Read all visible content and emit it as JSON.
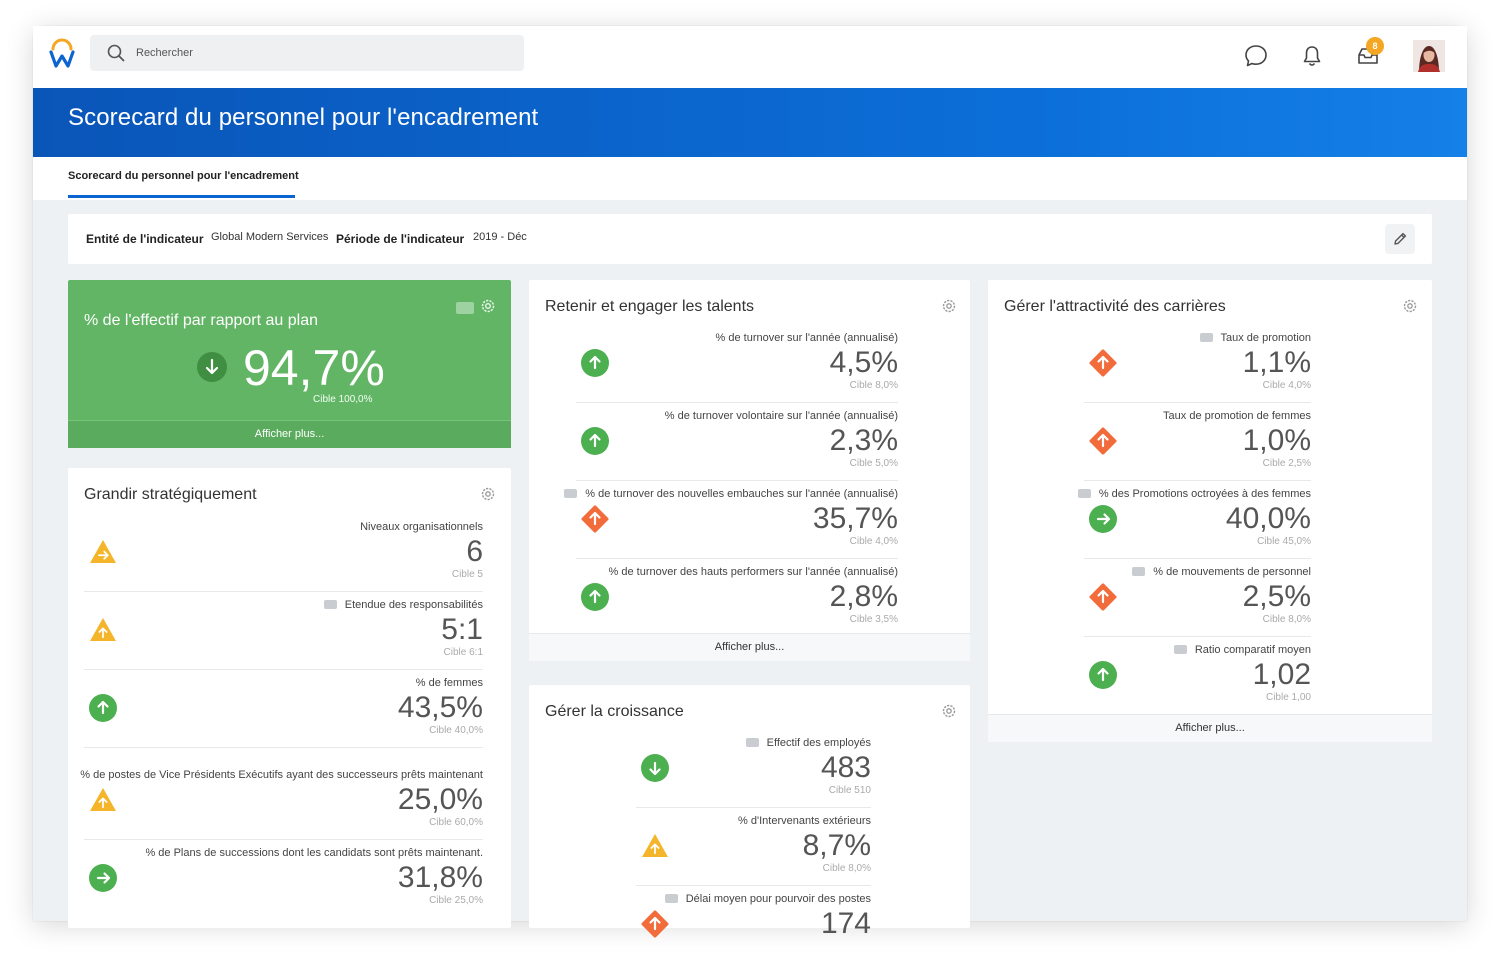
{
  "search": {
    "placeholder": "Rechercher"
  },
  "nav": {
    "inbox_count": "8"
  },
  "page": {
    "title": "Scorecard du personnel pour l'encadrement",
    "tab": "Scorecard du personnel pour l'encadrement"
  },
  "filters": {
    "entity_label": "Entité de l'indicateur",
    "entity_value": "Global Modern Services",
    "period_label": "Période de l'indicateur",
    "period_value": "2019 - Déc"
  },
  "colors": {
    "good": "#4caf50",
    "warning": "#f5b52a",
    "bad": "#f26b3a",
    "brand": "#0b64d0"
  },
  "hero": {
    "title": "% de l'effectif par rapport au plan",
    "value": "94,7%",
    "target": "Cible   100,0%",
    "more": "Afficher plus...",
    "status": "down"
  },
  "grow": {
    "title": "Grandir stratégiquement",
    "metrics": [
      {
        "label": "Niveaux organisationnels",
        "value": "6",
        "target": "Cible  5",
        "status": "warning-right"
      },
      {
        "label": "Etendue des responsabilités",
        "value": "5:1",
        "target": "Cible  6:1",
        "status": "warning-up"
      },
      {
        "label": "% de femmes",
        "value": "43,5%",
        "target": "Cible  40,0%",
        "status": "good-up"
      },
      {
        "label": "% de postes de Vice Présidents Exécutifs ayant des successeurs prêts maintenant",
        "value": "25,0%",
        "target": "Cible  60,0%",
        "status": "warning-up"
      },
      {
        "label": "% de Plans de successions dont les candidats sont prêts maintenant.",
        "value": "31,8%",
        "target": "Cible  25,0%",
        "status": "good-right"
      }
    ]
  },
  "retain": {
    "title": "Retenir et engager les talents",
    "more": "Afficher plus...",
    "metrics": [
      {
        "label": "% de turnover sur l'année (annualisé)",
        "value": "4,5%",
        "target": "Cible  8,0%",
        "status": "good-up"
      },
      {
        "label": "% de turnover volontaire sur l'année (annualisé)",
        "value": "2,3%",
        "target": "Cible  5,0%",
        "status": "good-up"
      },
      {
        "label": "% de turnover des nouvelles embauches sur l'année (annualisé)",
        "value": "35,7%",
        "target": "Cible  4,0%",
        "status": "bad-up"
      },
      {
        "label": "% de turnover des hauts performers sur l'année (annualisé)",
        "value": "2,8%",
        "target": "Cible  3,5%",
        "status": "good-up"
      }
    ]
  },
  "growth": {
    "title": "Gérer la croissance",
    "metrics": [
      {
        "label": "Effectif des employés",
        "value": "483",
        "target": "Cible  510",
        "status": "good-down"
      },
      {
        "label": "% d'Intervenants extérieurs",
        "value": "8,7%",
        "target": "Cible  8,0%",
        "status": "warning-up"
      },
      {
        "label": "Délai moyen pour pourvoir des postes",
        "value": "174",
        "target": "",
        "status": "bad-up"
      }
    ]
  },
  "careers": {
    "title": "Gérer l'attractivité des carrières",
    "more": "Afficher plus...",
    "metrics": [
      {
        "label": "Taux de promotion",
        "value": "1,1%",
        "target": "Cible  4,0%",
        "status": "bad-up"
      },
      {
        "label": "Taux de promotion de femmes",
        "value": "1,0%",
        "target": "Cible  2,5%",
        "status": "bad-up"
      },
      {
        "label": "% des Promotions octroyées à des femmes",
        "value": "40,0%",
        "target": "Cible  45,0%",
        "status": "good-right"
      },
      {
        "label": "% de mouvements de personnel",
        "value": "2,5%",
        "target": "Cible  8,0%",
        "status": "bad-up"
      },
      {
        "label": "Ratio comparatif moyen",
        "value": "1,02",
        "target": "Cible  1,00",
        "status": "good-up"
      }
    ]
  }
}
